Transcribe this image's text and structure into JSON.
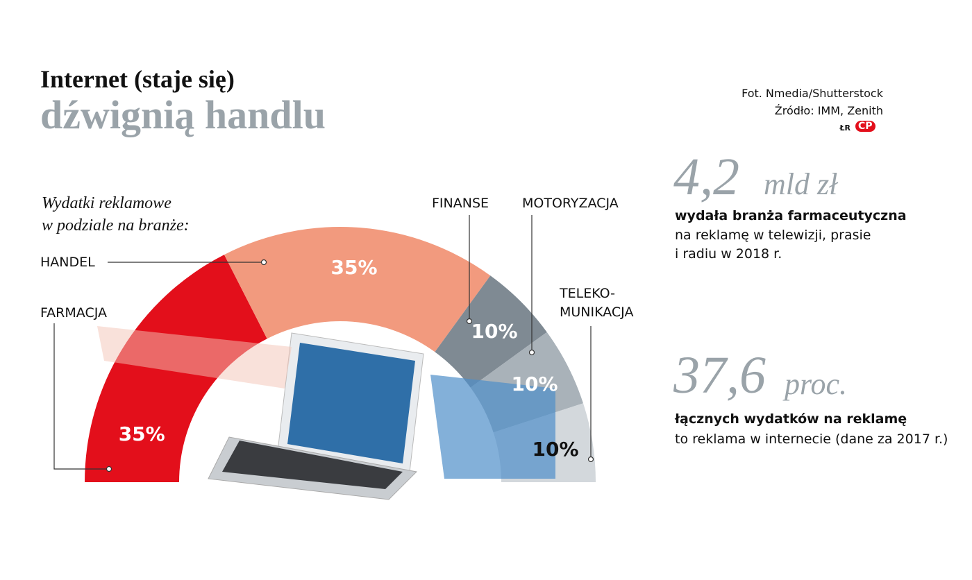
{
  "header": {
    "title": "Internet (staje się)",
    "title_accent": "dźwignią handlu"
  },
  "credits": {
    "photo": "Fot. Nmedia/Shutterstock",
    "source": "Źródło: IMM, Zenith",
    "author": "ŁR",
    "logo": "CP"
  },
  "chart_data": {
    "type": "pie",
    "subtitle": "Wydatki reklamowe\nw podziale na branże:",
    "categories": [
      "FARMACJA",
      "HANDEL",
      "FINANSE",
      "MOTORYZACJA",
      "TELEKO-\nMUNIKACJA"
    ],
    "values": [
      35,
      35,
      10,
      10,
      10
    ],
    "value_labels": [
      "35%",
      "35%",
      "10%",
      "10%",
      "10%"
    ],
    "colors": [
      "#e30f1b",
      "#f29a7e",
      "#7f8a93",
      "#a9b2b9",
      "#d3d8dc"
    ]
  },
  "stats": [
    {
      "number": "4,2",
      "unit": "mld zł",
      "lead": "wydała branża farmaceutyczna",
      "text": "na  reklamę w telewizji, prasie\ni radiu w 2018 r."
    },
    {
      "number": "37,6",
      "unit": "proc.",
      "lead": "łącznych wydatków na reklamę",
      "text": "to reklama w internecie (dane za 2017 r.)"
    }
  ]
}
